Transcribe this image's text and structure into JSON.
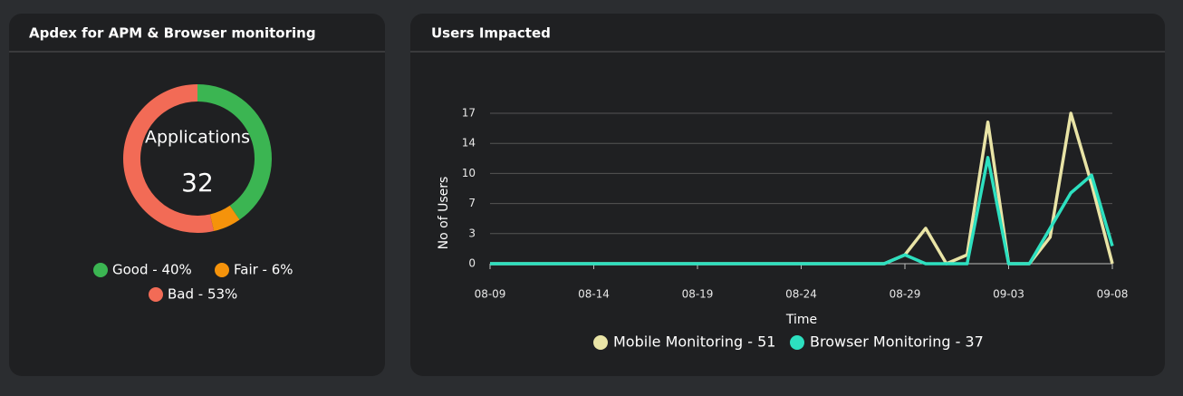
{
  "chart_data": [
    {
      "type": "pie",
      "title": "Apdex for APM & Browser monitoring",
      "center_label": "Applications",
      "center_value": 32,
      "categories": [
        "Good - 40%",
        "Fair - 6%",
        "Bad - 53%"
      ],
      "values": [
        40,
        6,
        53
      ],
      "colors": [
        "#3bb552",
        "#f5930b",
        "#f26b56"
      ]
    },
    {
      "type": "line",
      "title": "Users Impacted",
      "x_label": "Time",
      "y_label": "No of Users",
      "categories": [
        "08-09",
        null,
        null,
        null,
        null,
        "08-14",
        null,
        null,
        null,
        null,
        "08-19",
        null,
        null,
        null,
        null,
        "08-24",
        null,
        null,
        null,
        null,
        "08-29",
        null,
        null,
        null,
        null,
        "09-03",
        null,
        null,
        null,
        null,
        "09-08"
      ],
      "series": [
        {
          "name": "Mobile Monitoring - 51",
          "color": "#e9e4a6",
          "values": [
            0,
            0,
            0,
            0,
            0,
            0,
            0,
            0,
            0,
            0,
            0,
            0,
            0,
            0,
            0,
            0,
            0,
            0,
            0,
            0,
            1,
            4,
            0,
            1,
            16,
            0,
            0,
            3,
            17,
            9,
            0
          ]
        },
        {
          "name": "Browser Monitoring - 37",
          "color": "#2de0c0",
          "values": [
            0,
            0,
            0,
            0,
            0,
            0,
            0,
            0,
            0,
            0,
            0,
            0,
            0,
            0,
            0,
            0,
            0,
            0,
            0,
            0,
            1,
            0,
            0,
            0,
            12,
            0,
            0,
            4,
            8,
            10,
            2
          ]
        }
      ],
      "ylim": [
        0,
        17
      ],
      "yticks": [
        0,
        {
          "value": 3.4,
          "label": "3"
        },
        {
          "value": 6.8,
          "label": "7"
        },
        {
          "value": 10.2,
          "label": "10"
        },
        {
          "value": 13.6,
          "label": "14"
        },
        17
      ],
      "grid": true
    }
  ]
}
